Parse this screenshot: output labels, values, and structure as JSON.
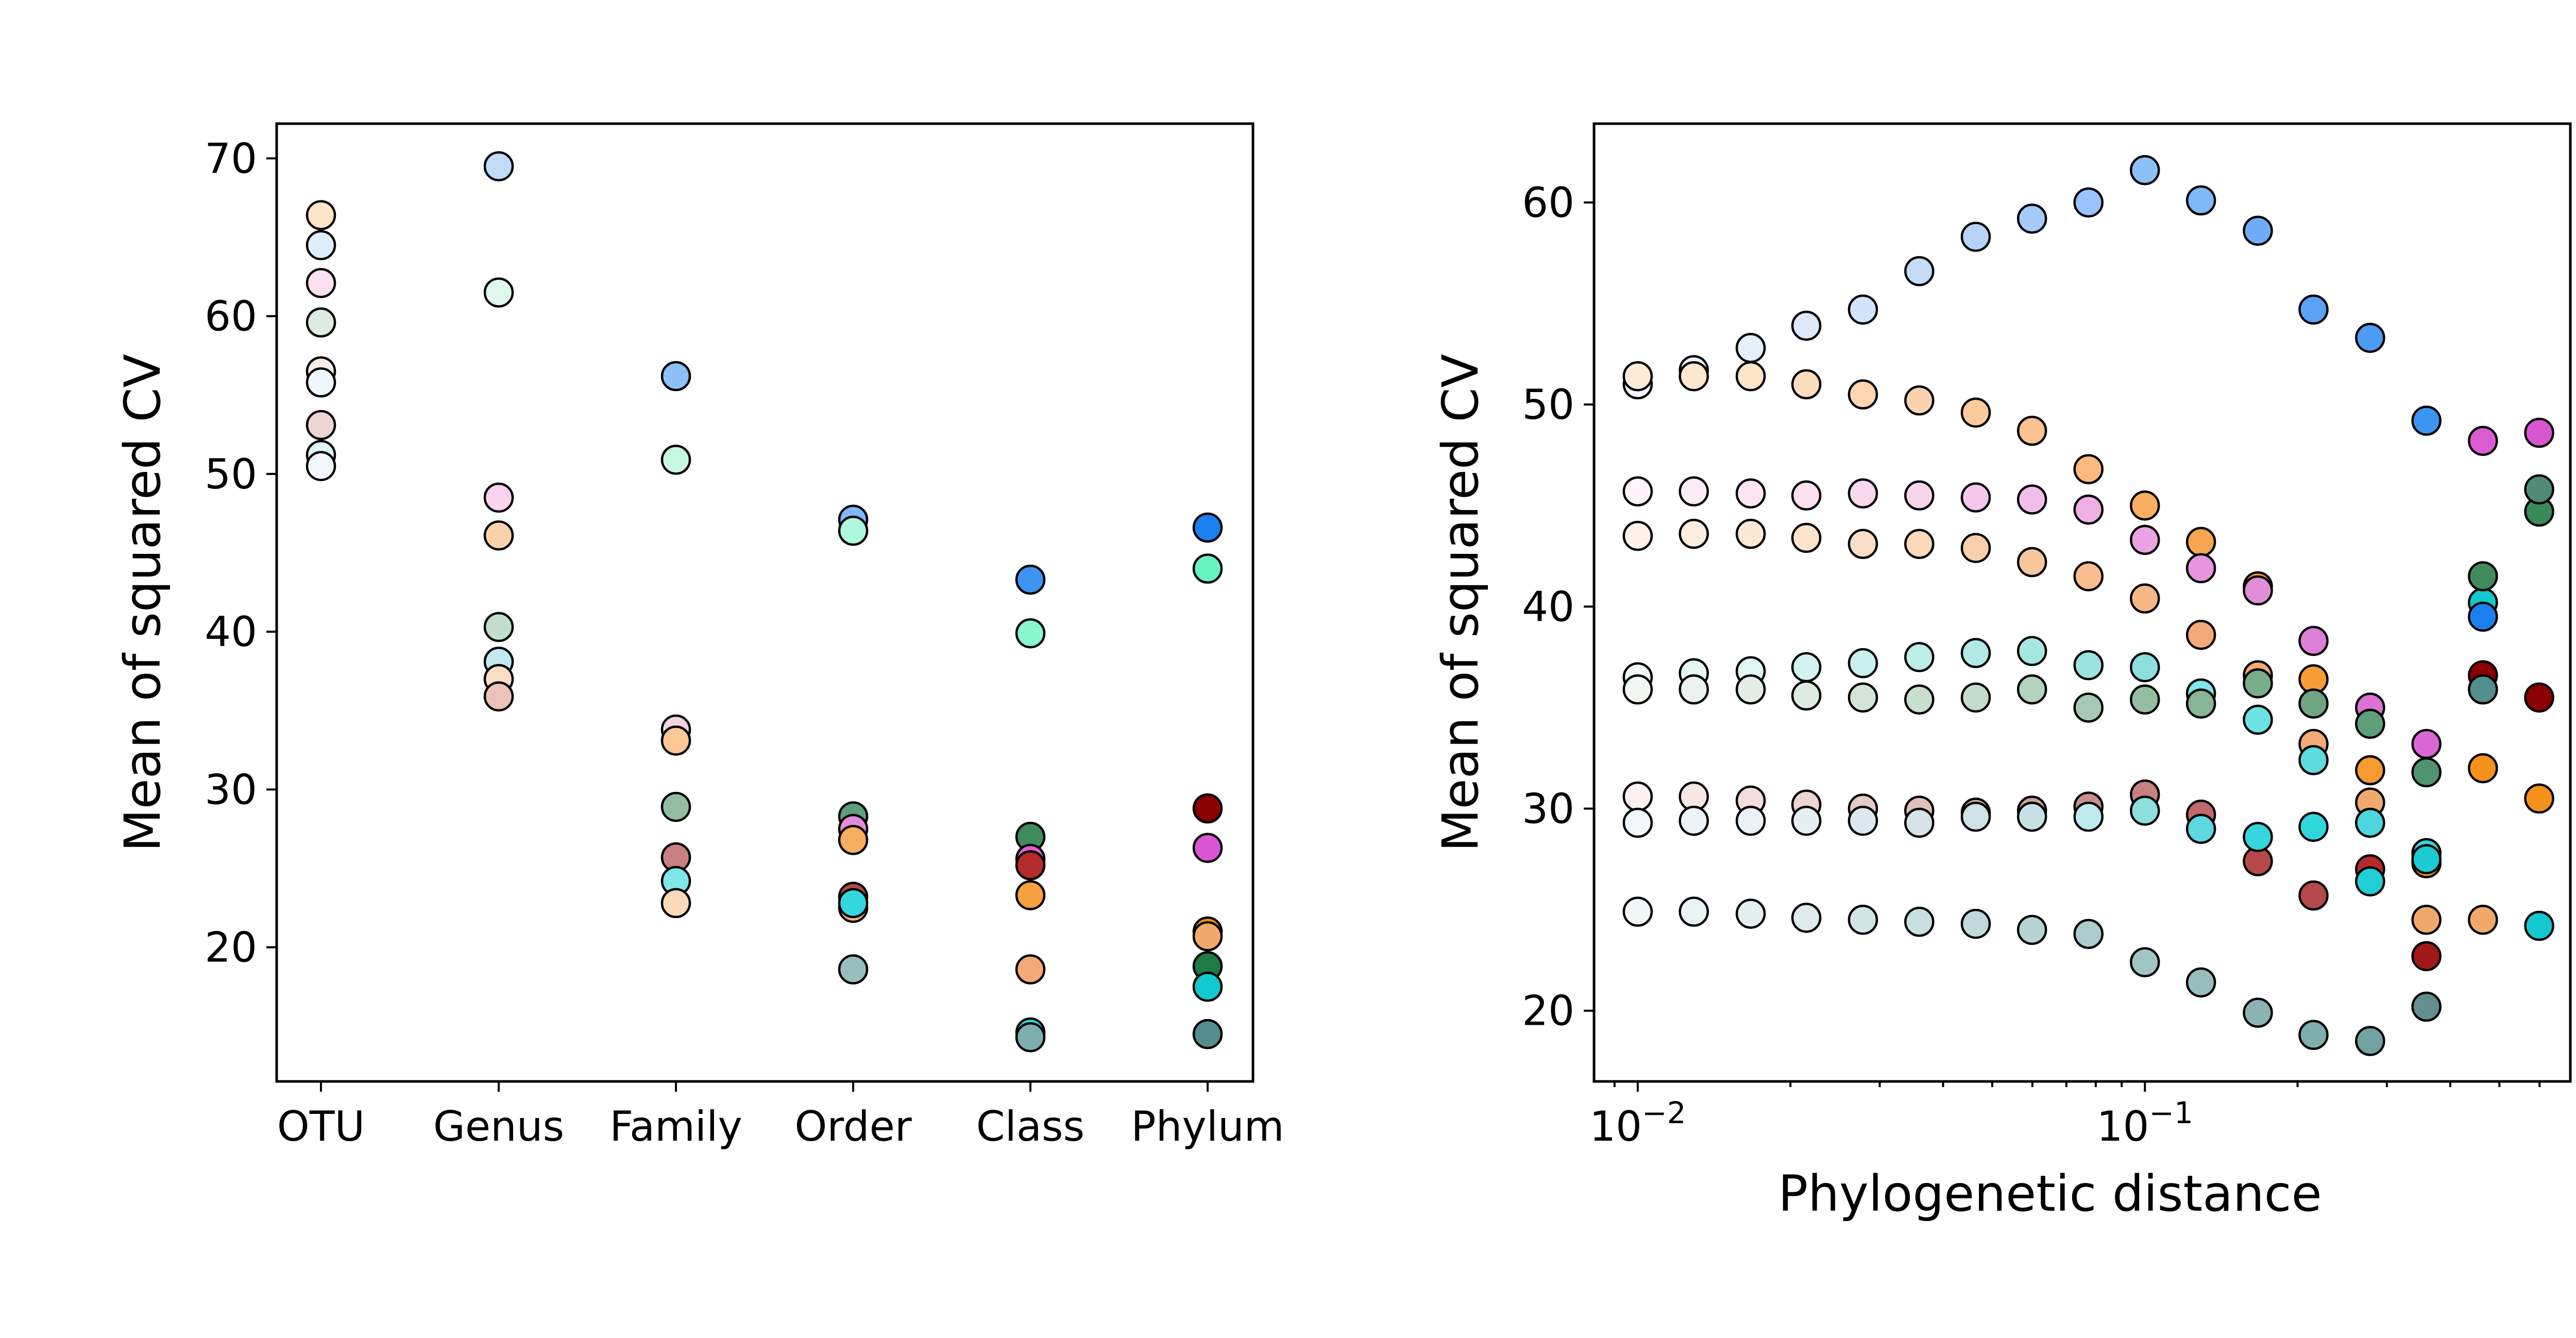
{
  "chart_data": [
    {
      "type": "scatter",
      "ylabel": "Mean of squared CV",
      "categories": [
        "OTU",
        "Genus",
        "Family",
        "Order",
        "Class",
        "Phylum"
      ],
      "yticks": [
        "20",
        "30",
        "40",
        "50",
        "60",
        "70"
      ],
      "ylim": [
        11.5,
        72.2
      ],
      "points": [
        {
          "category": "OTU",
          "y": 66.4,
          "color": "#fde3c8"
        },
        {
          "category": "OTU",
          "y": 64.5,
          "color": "#dfeefc"
        },
        {
          "category": "OTU",
          "y": 62.1,
          "color": "#fbe0ef"
        },
        {
          "category": "OTU",
          "y": 59.6,
          "color": "#dcece2"
        },
        {
          "category": "OTU",
          "y": 56.5,
          "color": "#fbeee9"
        },
        {
          "category": "OTU",
          "y": 55.8,
          "color": "#eef7fa"
        },
        {
          "category": "OTU",
          "y": 53.1,
          "color": "#ecd6d4"
        },
        {
          "category": "OTU",
          "y": 51.2,
          "color": "#def7f4"
        },
        {
          "category": "OTU",
          "y": 50.5,
          "color": "#f3f6fa"
        },
        {
          "category": "Genus",
          "y": 69.5,
          "color": "#c2dcf8"
        },
        {
          "category": "Genus",
          "y": 61.5,
          "color": "#dff8ee"
        },
        {
          "category": "Genus",
          "y": 48.5,
          "color": "#f8d4ef"
        },
        {
          "category": "Genus",
          "y": 46.1,
          "color": "#fbd2ae"
        },
        {
          "category": "Genus",
          "y": 40.3,
          "color": "#c2ddcc"
        },
        {
          "category": "Genus",
          "y": 38.1,
          "color": "#c1e9ee"
        },
        {
          "category": "Genus",
          "y": 37.0,
          "color": "#fbdcc5"
        },
        {
          "category": "Genus",
          "y": 35.9,
          "color": "#ebc3b8"
        },
        {
          "category": "Family",
          "y": 56.2,
          "color": "#8ec0f8"
        },
        {
          "category": "Family",
          "y": 50.9,
          "color": "#c8f8e2"
        },
        {
          "category": "Family",
          "y": 33.8,
          "color": "#f3d3e3"
        },
        {
          "category": "Family",
          "y": 33.1,
          "color": "#fbc896"
        },
        {
          "category": "Family",
          "y": 28.9,
          "color": "#93bda0"
        },
        {
          "category": "Family",
          "y": 25.7,
          "color": "#c98080"
        },
        {
          "category": "Family",
          "y": 24.2,
          "color": "#7de7e9"
        },
        {
          "category": "Family",
          "y": 22.8,
          "color": "#fbd9b9"
        },
        {
          "category": "Order",
          "y": 47.1,
          "color": "#7fb7f8"
        },
        {
          "category": "Order",
          "y": 46.4,
          "color": "#aef8dc"
        },
        {
          "category": "Order",
          "y": 28.3,
          "color": "#5f9e7b"
        },
        {
          "category": "Order",
          "y": 27.5,
          "color": "#e18ed9"
        },
        {
          "category": "Order",
          "y": 26.8,
          "color": "#f8ad60"
        },
        {
          "category": "Order",
          "y": 23.2,
          "color": "#b54848"
        },
        {
          "category": "Order",
          "y": 22.5,
          "color": "#f6b787"
        },
        {
          "category": "Order",
          "y": 22.8,
          "color": "#35d6dd"
        },
        {
          "category": "Order",
          "y": 18.6,
          "color": "#98bdbd"
        },
        {
          "category": "Class",
          "y": 43.3,
          "color": "#3d95f3"
        },
        {
          "category": "Class",
          "y": 39.9,
          "color": "#88f6cf"
        },
        {
          "category": "Class",
          "y": 27.0,
          "color": "#3f8b5b"
        },
        {
          "category": "Class",
          "y": 25.6,
          "color": "#e25fd8"
        },
        {
          "category": "Class",
          "y": 25.2,
          "color": "#b52b2b"
        },
        {
          "category": "Class",
          "y": 23.3,
          "color": "#f7a140"
        },
        {
          "category": "Class",
          "y": 18.6,
          "color": "#f3aa78"
        },
        {
          "category": "Class",
          "y": 14.6,
          "color": "#2fd7dd"
        },
        {
          "category": "Class",
          "y": 14.3,
          "color": "#7faeae"
        },
        {
          "category": "Phylum",
          "y": 46.6,
          "color": "#1c7ff0"
        },
        {
          "category": "Phylum",
          "y": 44.0,
          "color": "#66f3c1"
        },
        {
          "category": "Phylum",
          "y": 28.8,
          "color": "#8b0000"
        },
        {
          "category": "Phylum",
          "y": 26.3,
          "color": "#da55d2"
        },
        {
          "category": "Phylum",
          "y": 21.0,
          "color": "#f5921c"
        },
        {
          "category": "Phylum",
          "y": 20.7,
          "color": "#f0a96b"
        },
        {
          "category": "Phylum",
          "y": 18.8,
          "color": "#1f7a45"
        },
        {
          "category": "Phylum",
          "y": 17.5,
          "color": "#12c9cf"
        },
        {
          "category": "Phylum",
          "y": 14.5,
          "color": "#548d8d"
        }
      ]
    },
    {
      "type": "scatter",
      "xlabel": "Phylogenetic distance",
      "ylabel": "Mean of squared CV",
      "xscale": "log",
      "xlim": [
        0.0082,
        0.69
      ],
      "xticks": [
        {
          "value": 0.01,
          "base": "10",
          "exp": "−2"
        },
        {
          "value": 0.1,
          "base": "10",
          "exp": "−1"
        }
      ],
      "yticks": [
        "20",
        "30",
        "40",
        "50",
        "60"
      ],
      "ylim": [
        16.5,
        63.9
      ],
      "x": [
        0.01,
        0.0129,
        0.0167,
        0.0215,
        0.0278,
        0.0359,
        0.0464,
        0.0599,
        0.0774,
        0.1,
        0.129,
        0.167,
        0.215,
        0.278,
        0.359,
        0.464,
        0.599
      ],
      "series": [
        {
          "y": [
            51.0,
            51.7,
            52.8,
            53.9,
            54.7,
            56.6,
            58.3,
            59.2,
            60.0,
            61.6,
            60.1,
            58.6,
            54.7,
            53.3,
            49.2,
            null,
            null
          ],
          "colors": [
            "#f3f7fb",
            "#eef4fa",
            "#e4eff9",
            "#dbe9f9",
            "#d2e4f9",
            "#c4dcf8",
            "#b5d4f8",
            "#a6cbf8",
            "#98c3f8",
            "#8ec0f8",
            "#7fb7f8",
            "#6fadf6",
            "#5aa2f5",
            "#4c9bf4",
            "#3d95f3",
            null,
            null
          ]
        },
        {
          "y": [
            51.4,
            51.4,
            51.4,
            51.0,
            50.5,
            50.2,
            49.6,
            48.7,
            46.8,
            45.0,
            43.2,
            41.0,
            36.4,
            31.9,
            27.3,
            32.0,
            30.5
          ],
          "colors": [
            "#fdebd8",
            "#fde7d0",
            "#fde3c8",
            "#fcdcbd",
            "#fcd6b1",
            "#fbd2ae",
            "#fbcb9e",
            "#fbc38f",
            "#fbbb80",
            "#f8ad60",
            "#f7a54f",
            "#f7a140",
            "#f79d38",
            "#f79a30",
            "#f69726",
            "#f5921c",
            "#f5921c"
          ]
        },
        {
          "y": [
            45.7,
            45.7,
            45.6,
            45.5,
            45.6,
            45.5,
            45.4,
            45.3,
            44.8,
            43.3,
            41.9,
            40.8,
            38.3,
            35.0,
            33.2,
            48.2,
            48.6
          ],
          "colors": [
            "#fdf4fa",
            "#fcecf6",
            "#fbe5f3",
            "#fbe0ef",
            "#f9d8ee",
            "#f8d4ef",
            "#f5c8eb",
            "#f2bde8",
            "#eeb0e5",
            "#e9a2e2",
            "#e596de",
            "#e18ed9",
            "#dd7fd6",
            "#db72d5",
            "#db66d3",
            "#da5cd2",
            "#da55d2"
          ]
        },
        {
          "y": [
            43.5,
            43.6,
            43.6,
            43.4,
            43.1,
            43.1,
            42.9,
            42.2,
            41.5,
            40.4,
            38.6,
            36.6,
            33.2,
            30.3,
            24.5,
            24.5,
            null
          ],
          "colors": [
            "#fdf1ea",
            "#fdede1",
            "#fde8d6",
            "#fce3cc",
            "#fbdcc5",
            "#fbd9b9",
            "#f8cfaa",
            "#f6c59b",
            "#f6bd8e",
            "#f6b787",
            "#f3aa78",
            "#f3aa78",
            "#f3aa78",
            "#f0a96b",
            "#f0a96b",
            "#f0a96b",
            null
          ]
        },
        {
          "y": [
            36.5,
            36.7,
            36.8,
            37.0,
            37.2,
            37.5,
            37.7,
            37.8,
            37.1,
            37.0,
            35.7,
            34.4,
            32.4,
            29.3,
            27.8,
            40.2,
            null
          ],
          "colors": [
            "#f0fcf8",
            "#e6f8f3",
            "#def7f4",
            "#d2f3ef",
            "#c8f1ec",
            "#bdede8",
            "#b1e9e4",
            "#a6e6e1",
            "#9be3df",
            "#8cdfdd",
            "#7de7e9",
            "#6de1e4",
            "#5ddbdf",
            "#4dd6dc",
            "#3ad1d8",
            "#12c9cf",
            null
          ]
        },
        {
          "y": [
            35.9,
            35.9,
            35.9,
            35.6,
            35.5,
            35.4,
            35.5,
            35.9,
            35.0,
            35.4,
            35.2,
            36.2,
            35.2,
            34.2,
            31.8,
            41.5,
            44.7
          ],
          "colors": [
            "#f3f7f4",
            "#ebf1ec",
            "#e3ece5",
            "#dcece2",
            "#d2e4d8",
            "#c8dece",
            "#c2ddcc",
            "#b3d3bf",
            "#a5c9b2",
            "#93bda0",
            "#87b596",
            "#7aad8b",
            "#6ea582",
            "#5f9e7b",
            "#4f9470",
            "#3f8b5b",
            "#3a8a58"
          ]
        },
        {
          "y": [
            30.6,
            30.6,
            30.4,
            30.2,
            30.0,
            29.9,
            29.8,
            29.9,
            30.1,
            30.7,
            29.7,
            27.4,
            25.7,
            27.0,
            22.7,
            36.6,
            35.5
          ],
          "colors": [
            "#fbf1f0",
            "#f7e8e6",
            "#f2dedc",
            "#ecd6d4",
            "#e6cac7",
            "#e0bfbb",
            "#d7b0ac",
            "#cf9f9b",
            "#c98f8c",
            "#c98080",
            "#c06a6a",
            "#b54848",
            "#b54848",
            "#b52b2b",
            "#a01818",
            "#8b0000",
            "#8b0000"
          ]
        },
        {
          "y": [
            29.3,
            29.4,
            29.4,
            29.4,
            29.4,
            29.3,
            29.6,
            29.6,
            29.6,
            29.9,
            29.0,
            28.6,
            29.1,
            26.4,
            27.5,
            39.5,
            24.2
          ],
          "colors": [
            "#f3f6fa",
            "#eef3f7",
            "#eaf1f4",
            "#e5eff2",
            "#dde8ec",
            "#d6e4e8",
            "#cfe3e6",
            "#c7e0e3",
            "#beeaee",
            "#8cdfdd",
            "#5dd8de",
            "#35d6dd",
            "#2fd7dd",
            "#20cfd5",
            "#1ccbd1",
            "#1c7ff0",
            "#12c9cf"
          ]
        },
        {
          "y": [
            24.9,
            24.9,
            24.8,
            24.6,
            24.5,
            24.4,
            24.3,
            24.0,
            23.8,
            22.4,
            21.4,
            19.9,
            18.8,
            18.5,
            20.2,
            35.9,
            45.8
          ],
          "colors": [
            "#f1f7f7",
            "#eaf3f3",
            "#e3eeee",
            "#dcebeb",
            "#d2e4e4",
            "#cadfdf",
            "#c0d9d9",
            "#b6d2d2",
            "#abcccc",
            "#a1c5c5",
            "#98bdbd",
            "#8bb3b3",
            "#7faeae",
            "#72a3a3",
            "#648f8f",
            "#548d8d",
            "#4f8b77"
          ]
        }
      ]
    }
  ]
}
